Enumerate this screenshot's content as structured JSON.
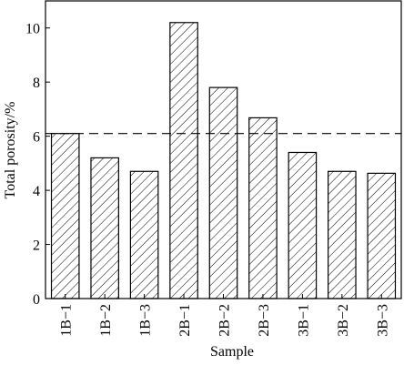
{
  "chart_data": {
    "type": "bar",
    "x_label": "Sample",
    "y_label": "Total porosity/%",
    "categories": [
      "1B−1",
      "1B−2",
      "1B−3",
      "2B−1",
      "2B−2",
      "2B−3",
      "3B−1",
      "3B−2",
      "3B−3"
    ],
    "values": [
      6.1,
      5.2,
      4.7,
      10.2,
      7.8,
      6.68,
      5.4,
      4.7,
      4.63
    ],
    "color": "#000000",
    "hatch": true,
    "reference_line": 6.1,
    "ylim": [
      0,
      11
    ],
    "yticks": [
      0,
      2,
      4,
      6,
      8,
      10
    ]
  }
}
